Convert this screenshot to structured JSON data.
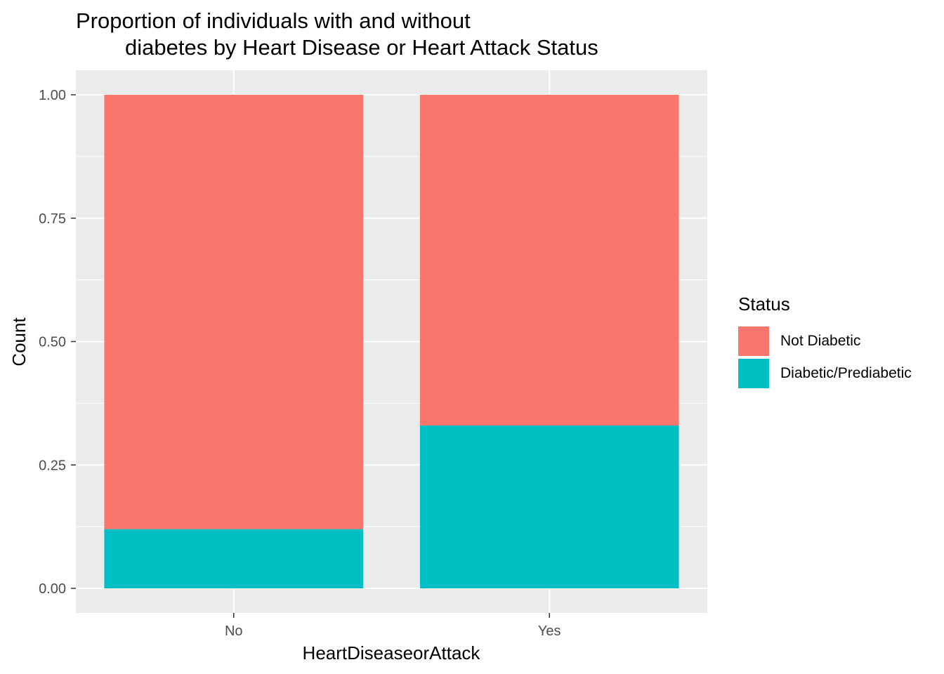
{
  "chart_data": {
    "type": "bar",
    "stacked": true,
    "title_lines": [
      "Proportion of individuals with and without",
      "diabetes by Heart Disease or Heart Attack Status"
    ],
    "xlabel": "HeartDiseaseorAttack",
    "ylabel": "Count",
    "categories": [
      "No",
      "Yes"
    ],
    "ylim": [
      0,
      1
    ],
    "yticks": [
      0,
      0.25,
      0.5,
      0.75,
      1
    ],
    "ytick_labels": [
      "0.00",
      "0.25",
      "0.50",
      "0.75",
      "1.00"
    ],
    "legend_title": "Status",
    "legend_position": "right",
    "grid": true,
    "series": [
      {
        "name": "Diabetic/Prediabetic",
        "values": [
          0.12,
          0.33
        ],
        "color": "#00BFC4"
      },
      {
        "name": "Not Diabetic",
        "values": [
          0.88,
          0.67
        ],
        "color": "#F8766D"
      }
    ],
    "legend_order": [
      "Not Diabetic",
      "Diabetic/Prediabetic"
    ],
    "panel_color": "#EBEBEB",
    "grid_color": "#FFFFFF"
  }
}
